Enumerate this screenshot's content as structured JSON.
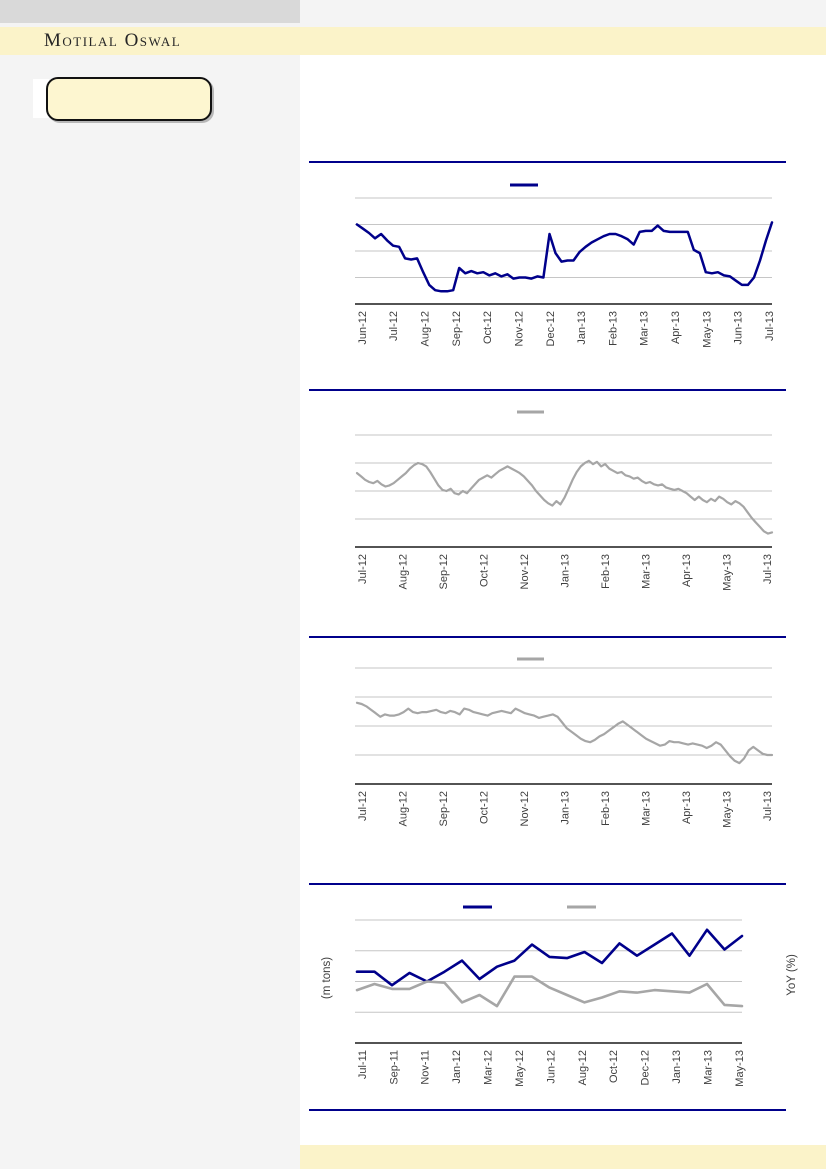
{
  "page": {
    "brand": "Motilal Oswal",
    "header": {
      "band_color": "#FBF3C9",
      "top_bar_color": "#D9D9D9"
    },
    "sidebar": {
      "highlight_box_text": ""
    },
    "footer": {
      "band_color": "#FBF3C9"
    },
    "colors": {
      "accent_navy": "#00008B",
      "series_gray": "#A6A6A6",
      "gridline_gray": "#C6C6C6",
      "axis_black": "#1A1A1A",
      "label_text": "#3F3F3F",
      "left_background": "#F4F4F4",
      "page_white": "#FFFFFF"
    }
  },
  "chart_data": [
    {
      "type": "line",
      "title": "",
      "gridlines": 4,
      "y_tick_labels_visible": false,
      "legend": [
        {
          "label": "",
          "color": "#00008B"
        }
      ],
      "x_labels": [
        "Jun-12",
        "Jul-12",
        "Aug-12",
        "Sep-12",
        "Oct-12",
        "Nov-12",
        "Dec-12",
        "Jan-13",
        "Feb-13",
        "Mar-13",
        "Apr-13",
        "May-13",
        "Jun-13",
        "Jul-13"
      ],
      "series": [
        {
          "name": "navy-weekly-line",
          "color": "#00008B",
          "width": 2.5,
          "y_pct": [
            75,
            71,
            67,
            62,
            66,
            60,
            55,
            54,
            43,
            42,
            43,
            30,
            18,
            13,
            12,
            12,
            13,
            34,
            29,
            31,
            29,
            30,
            27,
            29,
            26,
            28,
            24,
            25,
            25,
            24,
            26,
            25,
            66,
            48,
            40,
            41,
            41,
            49,
            54,
            58,
            61,
            64,
            66,
            66,
            64,
            61,
            56,
            68,
            69,
            69,
            74,
            69,
            68,
            68,
            68,
            68,
            51,
            48,
            30,
            29,
            30,
            27,
            26,
            22,
            18,
            18,
            25,
            41,
            60,
            77
          ]
        }
      ]
    },
    {
      "type": "line",
      "title": "",
      "gridlines": 4,
      "y_tick_labels_visible": false,
      "legend": [
        {
          "label": "",
          "color": "#A6A6A6"
        }
      ],
      "x_labels": [
        "Jul-12",
        "Aug-12",
        "Sep-12",
        "Oct-12",
        "Nov-12",
        "Jan-13",
        "Feb-13",
        "Mar-13",
        "Apr-13",
        "May-13",
        "Jul-13"
      ],
      "series": [
        {
          "name": "gray-daily-line",
          "color": "#A6A6A6",
          "width": 2.2,
          "y_pct": [
            66,
            63,
            60,
            58,
            57,
            59,
            56,
            54,
            55,
            57,
            60,
            63,
            66,
            70,
            73,
            75,
            74,
            72,
            67,
            61,
            55,
            51,
            50,
            52,
            48,
            47,
            50,
            48,
            52,
            56,
            60,
            62,
            64,
            62,
            65,
            68,
            70,
            72,
            70,
            68,
            66,
            63,
            59,
            55,
            50,
            46,
            42,
            39,
            37,
            41,
            38,
            44,
            52,
            60,
            67,
            72,
            75,
            77,
            74,
            76,
            72,
            74,
            70,
            68,
            66,
            67,
            64,
            63,
            61,
            62,
            59,
            57,
            58,
            56,
            55,
            56,
            53,
            52,
            51,
            52,
            50,
            48,
            45,
            42,
            45,
            42,
            40,
            43,
            41,
            45,
            43,
            40,
            38,
            41,
            39,
            36,
            31,
            26,
            22,
            18,
            14,
            12,
            13
          ]
        }
      ]
    },
    {
      "type": "line",
      "title": "",
      "gridlines": 4,
      "y_tick_labels_visible": false,
      "legend": [
        {
          "label": "",
          "color": "#A6A6A6"
        }
      ],
      "x_labels": [
        "Jul-12",
        "Aug-12",
        "Sep-12",
        "Oct-12",
        "Nov-12",
        "Jan-13",
        "Feb-13",
        "Mar-13",
        "Apr-13",
        "May-13",
        "Jul-13"
      ],
      "series": [
        {
          "name": "gray-daily-line",
          "color": "#A6A6A6",
          "width": 2.2,
          "y_pct": [
            70,
            69,
            67,
            64,
            61,
            58,
            60,
            59,
            59,
            60,
            62,
            65,
            62,
            61,
            62,
            62,
            63,
            64,
            62,
            61,
            63,
            62,
            60,
            65,
            64,
            62,
            61,
            60,
            59,
            61,
            62,
            63,
            62,
            61,
            65,
            63,
            61,
            60,
            59,
            57,
            58,
            59,
            60,
            58,
            53,
            48,
            45,
            42,
            39,
            37,
            36,
            38,
            41,
            43,
            46,
            49,
            52,
            54,
            51,
            48,
            45,
            42,
            39,
            37,
            35,
            33,
            34,
            37,
            36,
            36,
            35,
            34,
            35,
            34,
            33,
            31,
            33,
            36,
            34,
            29,
            24,
            20,
            18,
            22,
            29,
            32,
            29,
            26,
            25,
            25
          ]
        }
      ]
    },
    {
      "type": "line",
      "title": "",
      "gridlines": 4,
      "y_tick_labels_visible": false,
      "ylabel_left": "(m tons)",
      "ylabel_right": "YoY (%)",
      "legend": [
        {
          "label": "",
          "color": "#00008B"
        },
        {
          "label": "",
          "color": "#A6A6A6"
        }
      ],
      "x_labels": [
        "Jul-11",
        "Sep-11",
        "Nov-11",
        "Jan-12",
        "Mar-12",
        "May-12",
        "Jun-12",
        "Aug-12",
        "Oct-12",
        "Dec-12",
        "Jan-13",
        "Mar-13",
        "May-13"
      ],
      "series": [
        {
          "name": "navy-monthly-line",
          "color": "#00008B",
          "width": 2.6,
          "y_pct": [
            58,
            58,
            47,
            57,
            50,
            58,
            67,
            52,
            62,
            67,
            80,
            70,
            69,
            74,
            65,
            81,
            71,
            80,
            89,
            71,
            92,
            76,
            87
          ]
        },
        {
          "name": "gray-monthly-line",
          "color": "#A6A6A6",
          "width": 2.6,
          "y_pct": [
            43,
            48,
            44,
            44,
            50,
            49,
            33,
            39,
            30,
            54,
            54,
            45,
            39,
            33,
            37,
            42,
            41,
            43,
            42,
            41,
            48,
            31,
            30
          ]
        }
      ]
    }
  ]
}
